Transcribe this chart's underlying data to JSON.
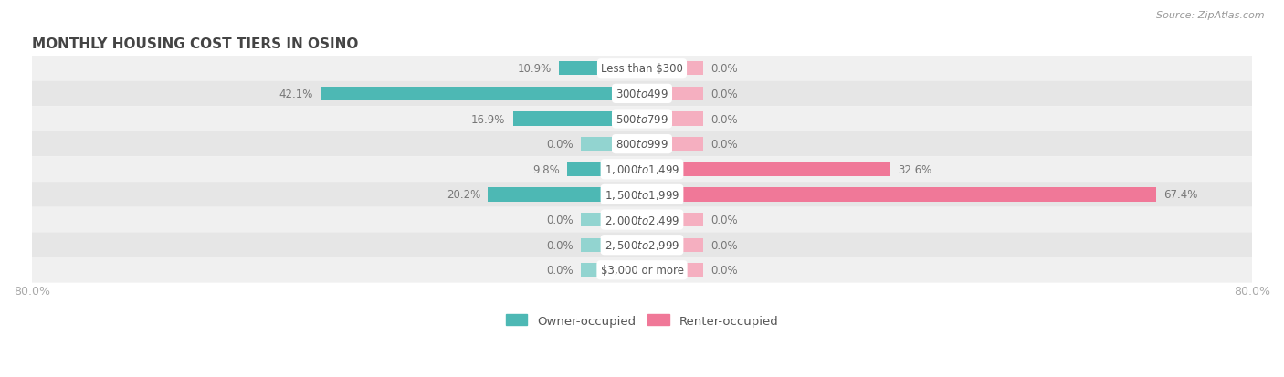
{
  "title": "MONTHLY HOUSING COST TIERS IN OSINO",
  "source": "Source: ZipAtlas.com",
  "categories": [
    "Less than $300",
    "$300 to $499",
    "$500 to $799",
    "$800 to $999",
    "$1,000 to $1,499",
    "$1,500 to $1,999",
    "$2,000 to $2,499",
    "$2,500 to $2,999",
    "$3,000 or more"
  ],
  "owner_values": [
    10.9,
    42.1,
    16.9,
    0.0,
    9.8,
    20.2,
    0.0,
    0.0,
    0.0
  ],
  "renter_values": [
    0.0,
    0.0,
    0.0,
    0.0,
    32.6,
    67.4,
    0.0,
    0.0,
    0.0
  ],
  "owner_color": "#4db8b4",
  "renter_color": "#f07898",
  "owner_color_light": "#92d4d0",
  "renter_color_light": "#f5afc0",
  "row_bg_colors": [
    "#f0f0f0",
    "#e6e6e6"
  ],
  "label_bg": "#ffffff",
  "label_text_color": "#555555",
  "value_text_color": "#777777",
  "title_color": "#444444",
  "source_color": "#999999",
  "xlim": 80.0,
  "stub_size": 8.0,
  "legend_labels": [
    "Owner-occupied",
    "Renter-occupied"
  ],
  "bar_height": 0.55
}
